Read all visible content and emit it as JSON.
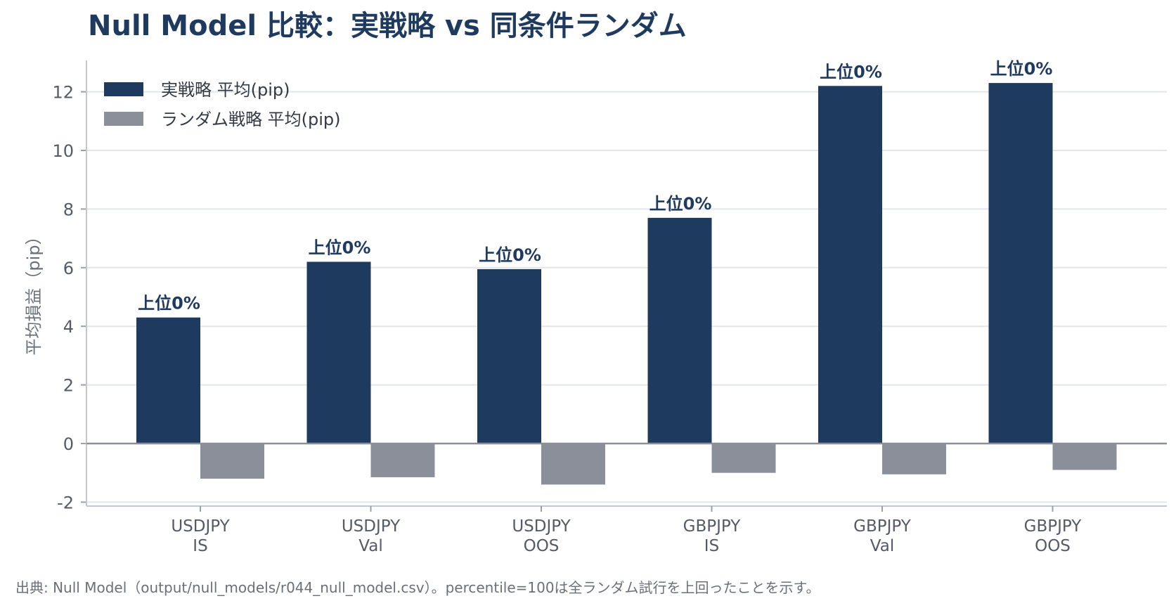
{
  "chart_data": {
    "type": "bar",
    "title": "Null Model 比較：実戦略 vs 同条件ランダム",
    "xlabel": "",
    "ylabel": "平均損益（pip）",
    "ylim": [
      -2,
      13
    ],
    "yticks": [
      -2,
      0,
      2,
      4,
      6,
      8,
      10,
      12
    ],
    "grid": true,
    "legend_position": "top-left",
    "categories": [
      "USDJPY\nIS",
      "USDJPY\nVal",
      "USDJPY\nOOS",
      "GBPJPY\nIS",
      "GBPJPY\nVal",
      "GBPJPY\nOOS"
    ],
    "series": [
      {
        "name": "実戦略 平均(pip)",
        "color": "#1f3a5f",
        "values": [
          4.3,
          6.2,
          5.95,
          7.7,
          12.2,
          12.3
        ]
      },
      {
        "name": "ランダム戦略 平均(pip)",
        "color": "#8b8f9a",
        "values": [
          -1.2,
          -1.15,
          -1.4,
          -1.0,
          -1.05,
          -0.9
        ]
      }
    ],
    "annotations": [
      "上位0%",
      "上位0%",
      "上位0%",
      "上位0%",
      "上位0%",
      "上位0%"
    ]
  },
  "source_note": "出典: Null Model（output/null_models/r044_null_model.csv）。percentile=100は全ランダム試行を上回ったことを示す。"
}
